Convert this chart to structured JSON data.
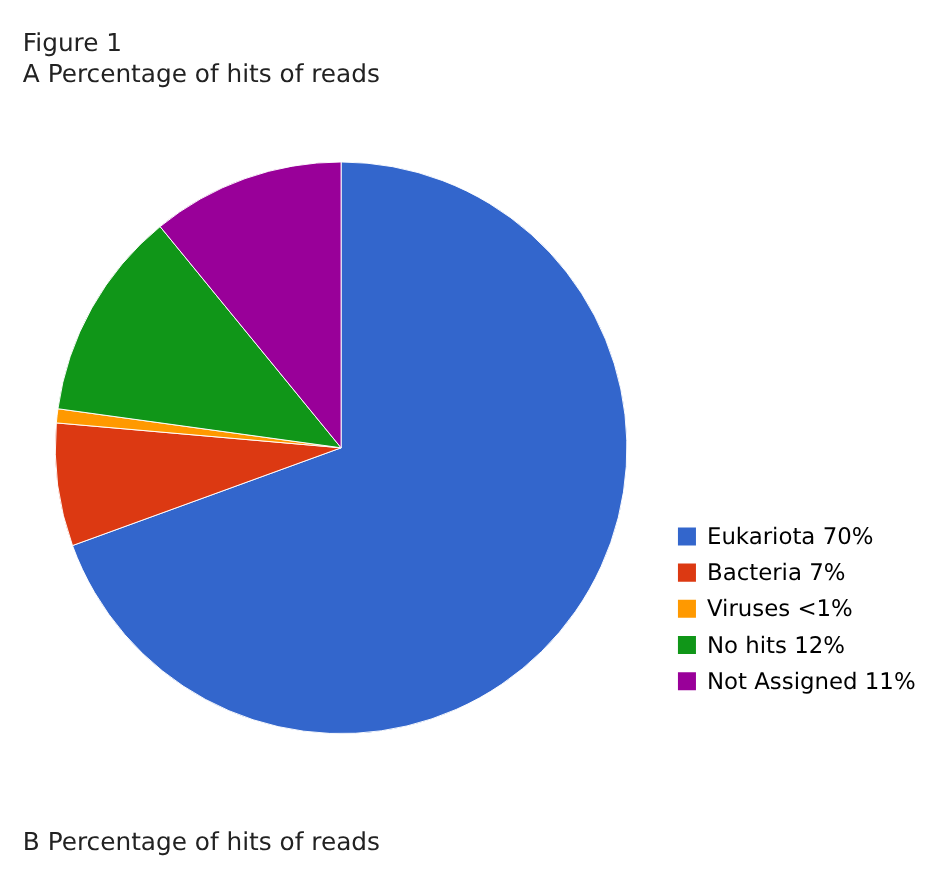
{
  "chart_data": {
    "type": "pie",
    "title": "Figure 1",
    "subtitle": "A Percentage of hits of reads",
    "categories": [
      "Eukariota 70%",
      "Bacteria 7%",
      "Viruses <1%",
      "No hits 12%",
      "Not Assigned 11%"
    ],
    "values": [
      70,
      7,
      0.8,
      12,
      11
    ],
    "colors": [
      "#3366cc",
      "#dc3912",
      "#ff9900",
      "#109618",
      "#990099"
    ],
    "legend": "bottom right",
    "annotations": [
      "B Percentage of hits of reads"
    ]
  }
}
